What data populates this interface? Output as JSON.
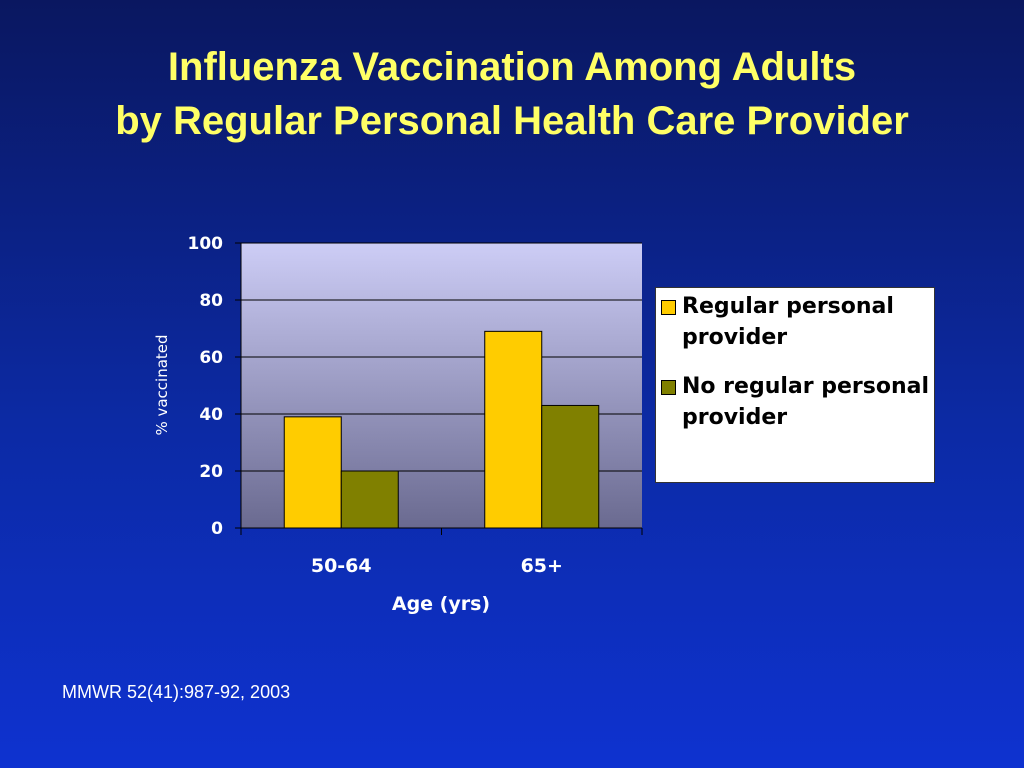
{
  "slide": {
    "title_line1": "Influenza Vaccination Among Adults",
    "title_line2": "by Regular Personal Health Care Provider",
    "source": "MMWR 52(41):987-92, 2003"
  },
  "chart_data": {
    "type": "bar",
    "categories": [
      "50-64",
      "65+"
    ],
    "series": [
      {
        "name": "Regular personal provider",
        "values": [
          39,
          69
        ],
        "color": "#ffcc00"
      },
      {
        "name": "No regular personal provider",
        "values": [
          20,
          43
        ],
        "color": "#808000"
      }
    ],
    "xlabel": "Age (yrs)",
    "ylabel": "% vaccinated",
    "ylim": [
      0,
      100
    ],
    "yticks": [
      0,
      20,
      40,
      60,
      80,
      100
    ],
    "grid": true,
    "legend_position": "right"
  }
}
